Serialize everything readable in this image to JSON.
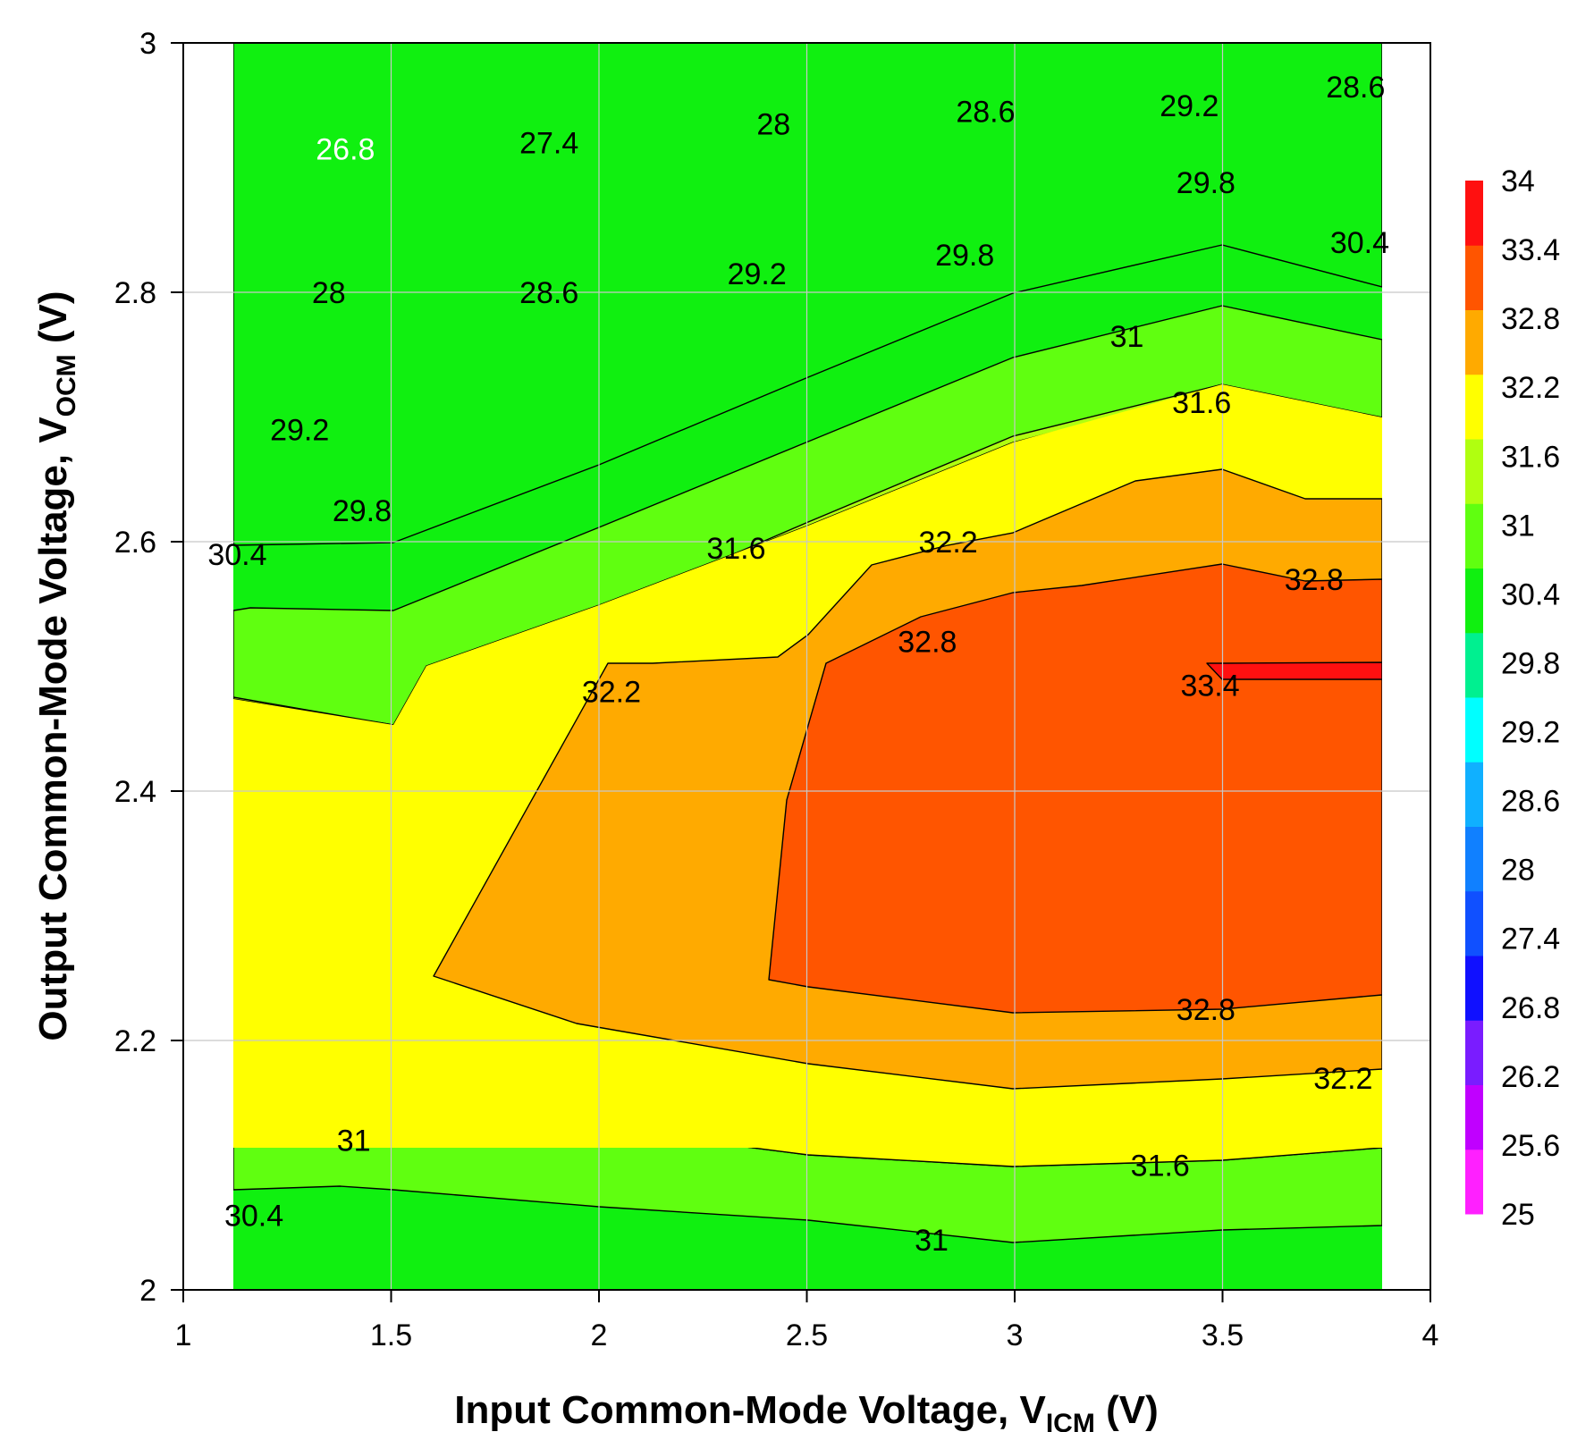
{
  "chart_data": {
    "type": "heatmap",
    "subtype": "filled-contour",
    "title": "",
    "xlabel": "Input Common-Mode Voltage, V",
    "xlabel_sub": "ICM",
    "xlabel_suffix": " (V)",
    "ylabel": "Output Common-Mode Voltage, V",
    "ylabel_sub": "OCM",
    "ylabel_suffix": " (V)",
    "xlim": [
      1,
      4
    ],
    "ylim": [
      2,
      3
    ],
    "x_ticks": [
      "1",
      "1.5",
      "2",
      "2.5",
      "3",
      "3.5",
      "4"
    ],
    "y_ticks": [
      "2",
      "2.2",
      "2.4",
      "2.6",
      "2.8",
      "3"
    ],
    "grid": true,
    "data_x_range": [
      1.12,
      3.88
    ],
    "colorbar": {
      "levels": [
        "25",
        "25.6",
        "26.2",
        "26.8",
        "27.4",
        "28",
        "28.6",
        "29.2",
        "29.8",
        "30.4",
        "31",
        "31.6",
        "32.2",
        "32.8",
        "33.4",
        "34"
      ],
      "colors": [
        "#ff20ff",
        "#c000ff",
        "#7a1cff",
        "#1010ff",
        "#1050ff",
        "#1080ff",
        "#10b0ff",
        "#00ffff",
        "#00f090",
        "#10f010",
        "#60ff10",
        "#b0ff10",
        "#ffff00",
        "#ffaa00",
        "#ff5500",
        "#ff1010"
      ],
      "placement": "right"
    },
    "contour_labels": [
      {
        "text": "26.8",
        "x": 1.39,
        "y": 2.915,
        "white": true
      },
      {
        "text": "27.4",
        "x": 1.88,
        "y": 2.92
      },
      {
        "text": "28",
        "x": 2.42,
        "y": 2.935
      },
      {
        "text": "28.6",
        "x": 2.93,
        "y": 2.945
      },
      {
        "text": "29.2",
        "x": 3.42,
        "y": 2.95
      },
      {
        "text": "28.6",
        "x": 3.82,
        "y": 2.965
      },
      {
        "text": "28",
        "x": 1.35,
        "y": 2.8
      },
      {
        "text": "28.6",
        "x": 1.88,
        "y": 2.8
      },
      {
        "text": "29.2",
        "x": 2.38,
        "y": 2.815
      },
      {
        "text": "29.8",
        "x": 2.88,
        "y": 2.83
      },
      {
        "text": "29.8",
        "x": 3.46,
        "y": 2.888
      },
      {
        "text": "30.4",
        "x": 3.83,
        "y": 2.84
      },
      {
        "text": "29.2",
        "x": 1.28,
        "y": 2.69
      },
      {
        "text": "31",
        "x": 3.27,
        "y": 2.765
      },
      {
        "text": "31.6",
        "x": 3.45,
        "y": 2.712
      },
      {
        "text": "29.8",
        "x": 1.43,
        "y": 2.625
      },
      {
        "text": "30.4",
        "x": 1.13,
        "y": 2.59
      },
      {
        "text": "31.6",
        "x": 2.33,
        "y": 2.595
      },
      {
        "text": "32.2",
        "x": 2.84,
        "y": 2.6
      },
      {
        "text": "32.8",
        "x": 3.72,
        "y": 2.57
      },
      {
        "text": "32.2",
        "x": 2.03,
        "y": 2.48
      },
      {
        "text": "32.8",
        "x": 2.79,
        "y": 2.52
      },
      {
        "text": "33.4",
        "x": 3.47,
        "y": 2.485
      },
      {
        "text": "32.8",
        "x": 3.46,
        "y": 2.225
      },
      {
        "text": "32.2",
        "x": 3.79,
        "y": 2.17
      },
      {
        "text": "31",
        "x": 1.41,
        "y": 2.12
      },
      {
        "text": "31.6",
        "x": 3.35,
        "y": 2.1
      },
      {
        "text": "30.4",
        "x": 1.17,
        "y": 2.06
      },
      {
        "text": "31",
        "x": 2.8,
        "y": 2.04
      }
    ]
  }
}
